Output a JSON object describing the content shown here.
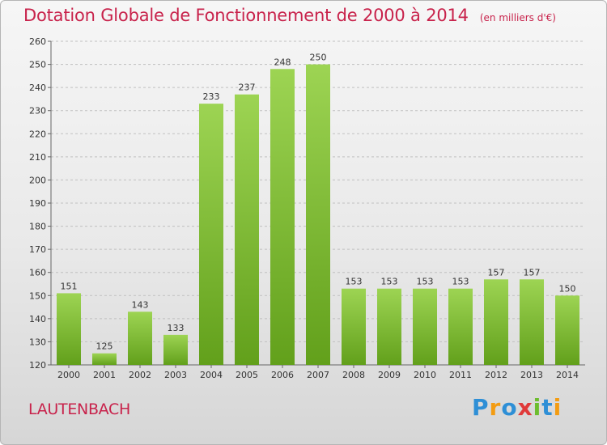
{
  "header": {
    "title": "Dotation Globale de Fonctionnement de 2000 à 2014",
    "unit": "(en milliers d'€)"
  },
  "commune": "LAUTENBACH",
  "logo": {
    "text": "Proxiti",
    "letters": [
      {
        "ch": "P",
        "color": "#2e8fd6"
      },
      {
        "ch": "r",
        "color": "#f39c12"
      },
      {
        "ch": "o",
        "color": "#2e8fd6"
      },
      {
        "ch": "x",
        "color": "#e03a3a"
      },
      {
        "ch": "i",
        "color": "#6dbd2f"
      },
      {
        "ch": "t",
        "color": "#2e8fd6"
      },
      {
        "ch": "i",
        "color": "#f39c12"
      }
    ]
  },
  "colors": {
    "bar_top": "#9dd453",
    "bar_bottom": "#62a01b",
    "title": "#c8224b",
    "grid": "#c0c0c0",
    "axis_text": "#333333"
  },
  "chart_data": {
    "type": "bar",
    "title": "Dotation Globale de Fonctionnement de 2000 à 2014",
    "subtitle": "(en milliers d'€)",
    "xlabel": "",
    "ylabel": "",
    "ylim": [
      120,
      260
    ],
    "yticks": [
      120,
      130,
      140,
      150,
      160,
      170,
      180,
      190,
      200,
      210,
      220,
      230,
      240,
      250,
      260
    ],
    "grid": true,
    "categories": [
      "2000",
      "2001",
      "2002",
      "2003",
      "2004",
      "2005",
      "2006",
      "2007",
      "2008",
      "2009",
      "2010",
      "2011",
      "2012",
      "2013",
      "2014"
    ],
    "values": [
      151,
      125,
      143,
      133,
      233,
      237,
      248,
      250,
      153,
      153,
      153,
      153,
      157,
      157,
      150
    ]
  }
}
